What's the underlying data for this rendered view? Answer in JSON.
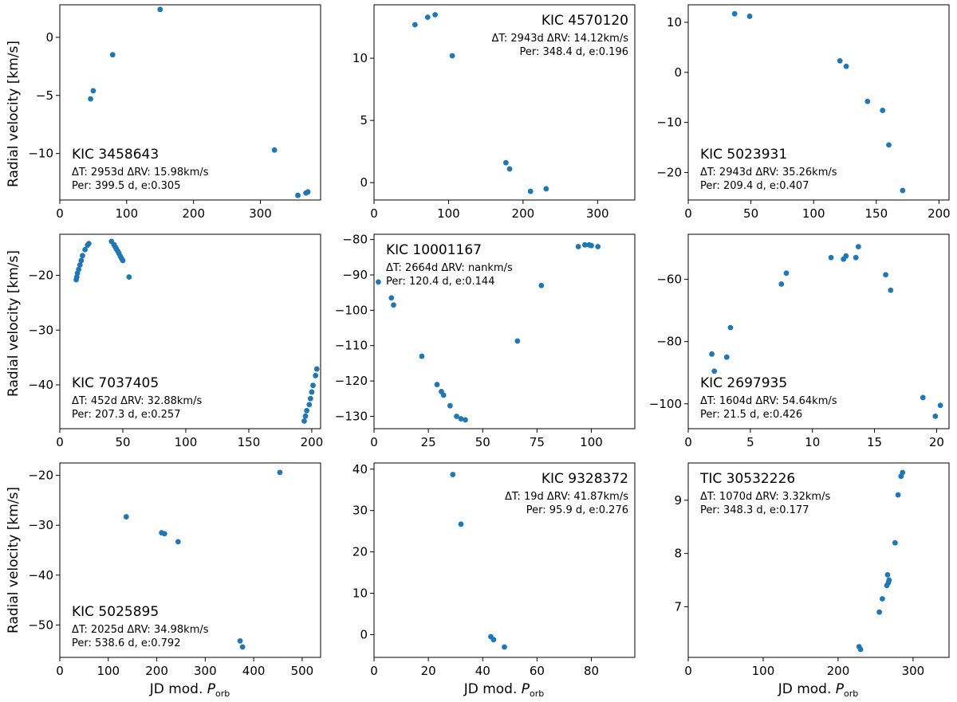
{
  "figure": {
    "ylabel": "Radial velocity [km/s]",
    "xlabel_main": "JD mod. ",
    "xlabel_symbol": "P",
    "xlabel_sub": "orb",
    "marker_color": "#1f77b4"
  },
  "chart_data": [
    {
      "type": "scatter",
      "star": "KIC 3458643",
      "info1": "ΔT: 2953d ΔRV: 15.98km/s",
      "info2": "Per: 399.5 d, e:0.305",
      "label_pos": "bottom-left",
      "xlim": [
        0,
        390
      ],
      "ylim": [
        -14,
        2.8
      ],
      "xticks": [
        0,
        100,
        200,
        300
      ],
      "yticks": [
        -10,
        -5,
        0
      ],
      "points": [
        [
          46,
          -5.3
        ],
        [
          50,
          -4.6
        ],
        [
          79,
          -1.5
        ],
        [
          150,
          2.4
        ],
        [
          321,
          -9.7
        ],
        [
          356,
          -13.6
        ],
        [
          368,
          -13.4
        ],
        [
          371,
          -13.3
        ]
      ]
    },
    {
      "type": "scatter",
      "star": "KIC 4570120",
      "info1": "ΔT: 2943d ΔRV: 14.12km/s",
      "info2": "Per: 348.4 d, e:0.196",
      "label_pos": "top-right",
      "xlim": [
        0,
        350
      ],
      "ylim": [
        -1.4,
        14.3
      ],
      "xticks": [
        0,
        100,
        200,
        300
      ],
      "yticks": [
        0,
        5,
        10
      ],
      "points": [
        [
          55,
          12.7
        ],
        [
          72,
          13.3
        ],
        [
          82,
          13.5
        ],
        [
          105,
          10.2
        ],
        [
          177,
          1.6
        ],
        [
          182,
          1.1
        ],
        [
          210,
          -0.7
        ],
        [
          231,
          -0.5
        ]
      ]
    },
    {
      "type": "scatter",
      "star": "KIC 5023931",
      "info1": "ΔT: 2943d ΔRV: 35.26km/s",
      "info2": "Per: 209.4 d, e:0.407",
      "label_pos": "bottom-left",
      "xlim": [
        0,
        208
      ],
      "ylim": [
        -25.5,
        13.5
      ],
      "xticks": [
        0,
        50,
        100,
        150,
        200
      ],
      "yticks": [
        -20,
        -10,
        0,
        10
      ],
      "points": [
        [
          37,
          11.7
        ],
        [
          49,
          11.2
        ],
        [
          121,
          2.3
        ],
        [
          126,
          1.2
        ],
        [
          143,
          -5.8
        ],
        [
          155,
          -7.6
        ],
        [
          160,
          -14.5
        ],
        [
          171,
          -23.6
        ]
      ]
    },
    {
      "type": "scatter",
      "star": "KIC 7037405",
      "info1": "ΔT: 452d ΔRV: 32.88km/s",
      "info2": "Per: 207.3 d, e:0.257",
      "label_pos": "bottom-left",
      "xlim": [
        0,
        207
      ],
      "ylim": [
        -48,
        -12.5
      ],
      "xticks": [
        0,
        50,
        100,
        150,
        200
      ],
      "yticks": [
        -40,
        -30,
        -20
      ],
      "points": [
        [
          13,
          -20.8
        ],
        [
          13.5,
          -20.3
        ],
        [
          14,
          -19.6
        ],
        [
          15,
          -18.9
        ],
        [
          16,
          -18.1
        ],
        [
          17,
          -17.3
        ],
        [
          18,
          -16.4
        ],
        [
          20,
          -15.3
        ],
        [
          22,
          -14.5
        ],
        [
          23,
          -14.2
        ],
        [
          41,
          -13.8
        ],
        [
          43,
          -14.4
        ],
        [
          44,
          -14.8
        ],
        [
          45,
          -15.2
        ],
        [
          46,
          -15.6
        ],
        [
          47,
          -16.0
        ],
        [
          48,
          -16.5
        ],
        [
          49,
          -16.9
        ],
        [
          50,
          -17.3
        ],
        [
          55,
          -20.3
        ],
        [
          194,
          -46.6
        ],
        [
          195,
          -45.7
        ],
        [
          196,
          -44.7
        ],
        [
          198,
          -43.6
        ],
        [
          199,
          -42.5
        ],
        [
          200,
          -41.3
        ],
        [
          201,
          -40.1
        ],
        [
          203,
          -38.3
        ],
        [
          204,
          -37.1
        ]
      ]
    },
    {
      "type": "scatter",
      "star": "KIC 10001167",
      "info1": "ΔT: 2664d ΔRV: nankm/s",
      "info2": "Per: 120.4 d, e:0.144",
      "label_pos": "top-left",
      "xlim": [
        0,
        120
      ],
      "ylim": [
        -133.5,
        -78.5
      ],
      "xticks": [
        0,
        25,
        50,
        75,
        100
      ],
      "yticks": [
        -130,
        -120,
        -110,
        -100,
        -90,
        -80
      ],
      "points": [
        [
          2,
          -92
        ],
        [
          8,
          -96.5
        ],
        [
          9,
          -98.5
        ],
        [
          22,
          -113
        ],
        [
          29,
          -121
        ],
        [
          31,
          -123
        ],
        [
          32,
          -124
        ],
        [
          35,
          -127
        ],
        [
          38,
          -130
        ],
        [
          40,
          -130.7
        ],
        [
          42,
          -131
        ],
        [
          66,
          -108.7
        ],
        [
          77,
          -93
        ],
        [
          94,
          -82
        ],
        [
          97,
          -81.5
        ],
        [
          99,
          -81.5
        ],
        [
          100,
          -81.7
        ],
        [
          103,
          -82
        ]
      ]
    },
    {
      "type": "scatter",
      "star": "KIC 2697935",
      "info1": "ΔT: 1604d ΔRV: 54.64km/s",
      "info2": "Per: 21.5 d, e:0.426",
      "label_pos": "bottom-left",
      "xlim": [
        0,
        21
      ],
      "ylim": [
        -108,
        -45.5
      ],
      "xticks": [
        0,
        5,
        10,
        15,
        20
      ],
      "yticks": [
        -100,
        -80,
        -60
      ],
      "points": [
        [
          1.9,
          -84
        ],
        [
          2.1,
          -89.5
        ],
        [
          3.1,
          -85
        ],
        [
          3.4,
          -75.5
        ],
        [
          7.5,
          -61.5
        ],
        [
          7.9,
          -58
        ],
        [
          11.5,
          -53
        ],
        [
          12.5,
          -53.5
        ],
        [
          12.7,
          -52.5
        ],
        [
          13.5,
          -53
        ],
        [
          13.7,
          -49.5
        ],
        [
          15.9,
          -58.5
        ],
        [
          16.3,
          -63.5
        ],
        [
          18.9,
          -98
        ],
        [
          19.9,
          -104
        ],
        [
          20.3,
          -100.5
        ]
      ]
    },
    {
      "type": "scatter",
      "star": "KIC 5025895",
      "info1": "ΔT: 2025d ΔRV: 34.98km/s",
      "info2": "Per: 538.6 d, e:0.792",
      "label_pos": "bottom-left",
      "xlim": [
        0,
        538
      ],
      "ylim": [
        -56.5,
        -17.5
      ],
      "xticks": [
        0,
        100,
        200,
        300,
        400,
        500
      ],
      "yticks": [
        -50,
        -40,
        -30,
        -20
      ],
      "points": [
        [
          137,
          -28.3
        ],
        [
          210,
          -31.5
        ],
        [
          216,
          -31.7
        ],
        [
          244,
          -33.3
        ],
        [
          372,
          -53.2
        ],
        [
          377,
          -54.4
        ],
        [
          454,
          -19.4
        ]
      ]
    },
    {
      "type": "scatter",
      "star": "KIC 9328372",
      "info1": "ΔT: 19d ΔRV: 41.87km/s",
      "info2": "Per: 95.9 d, e:0.276",
      "label_pos": "top-right",
      "xlim": [
        0,
        96
      ],
      "ylim": [
        -5.5,
        41.5
      ],
      "xticks": [
        0,
        20,
        40,
        60,
        80
      ],
      "yticks": [
        0,
        10,
        20,
        30,
        40
      ],
      "points": [
        [
          29,
          38.7
        ],
        [
          32,
          26.7
        ],
        [
          43,
          -0.5
        ],
        [
          44,
          -1.2
        ],
        [
          48,
          -3
        ]
      ]
    },
    {
      "type": "scatter",
      "star": "TIC 30532226",
      "info1": "ΔT: 1070d ΔRV: 3.32km/s",
      "info2": "Per: 348.3 d, e:0.177",
      "label_pos": "top-left",
      "xlim": [
        0,
        348
      ],
      "ylim": [
        6.05,
        9.7
      ],
      "xticks": [
        0,
        100,
        200,
        300
      ],
      "yticks": [
        7,
        8,
        9
      ],
      "points": [
        [
          228,
          6.25
        ],
        [
          230,
          6.2
        ],
        [
          255,
          6.9
        ],
        [
          259,
          7.15
        ],
        [
          265,
          7.4
        ],
        [
          266,
          7.6
        ],
        [
          267,
          7.45
        ],
        [
          268,
          7.5
        ],
        [
          276,
          8.2
        ],
        [
          280,
          9.1
        ],
        [
          284,
          9.45
        ],
        [
          286,
          9.52
        ]
      ]
    }
  ]
}
